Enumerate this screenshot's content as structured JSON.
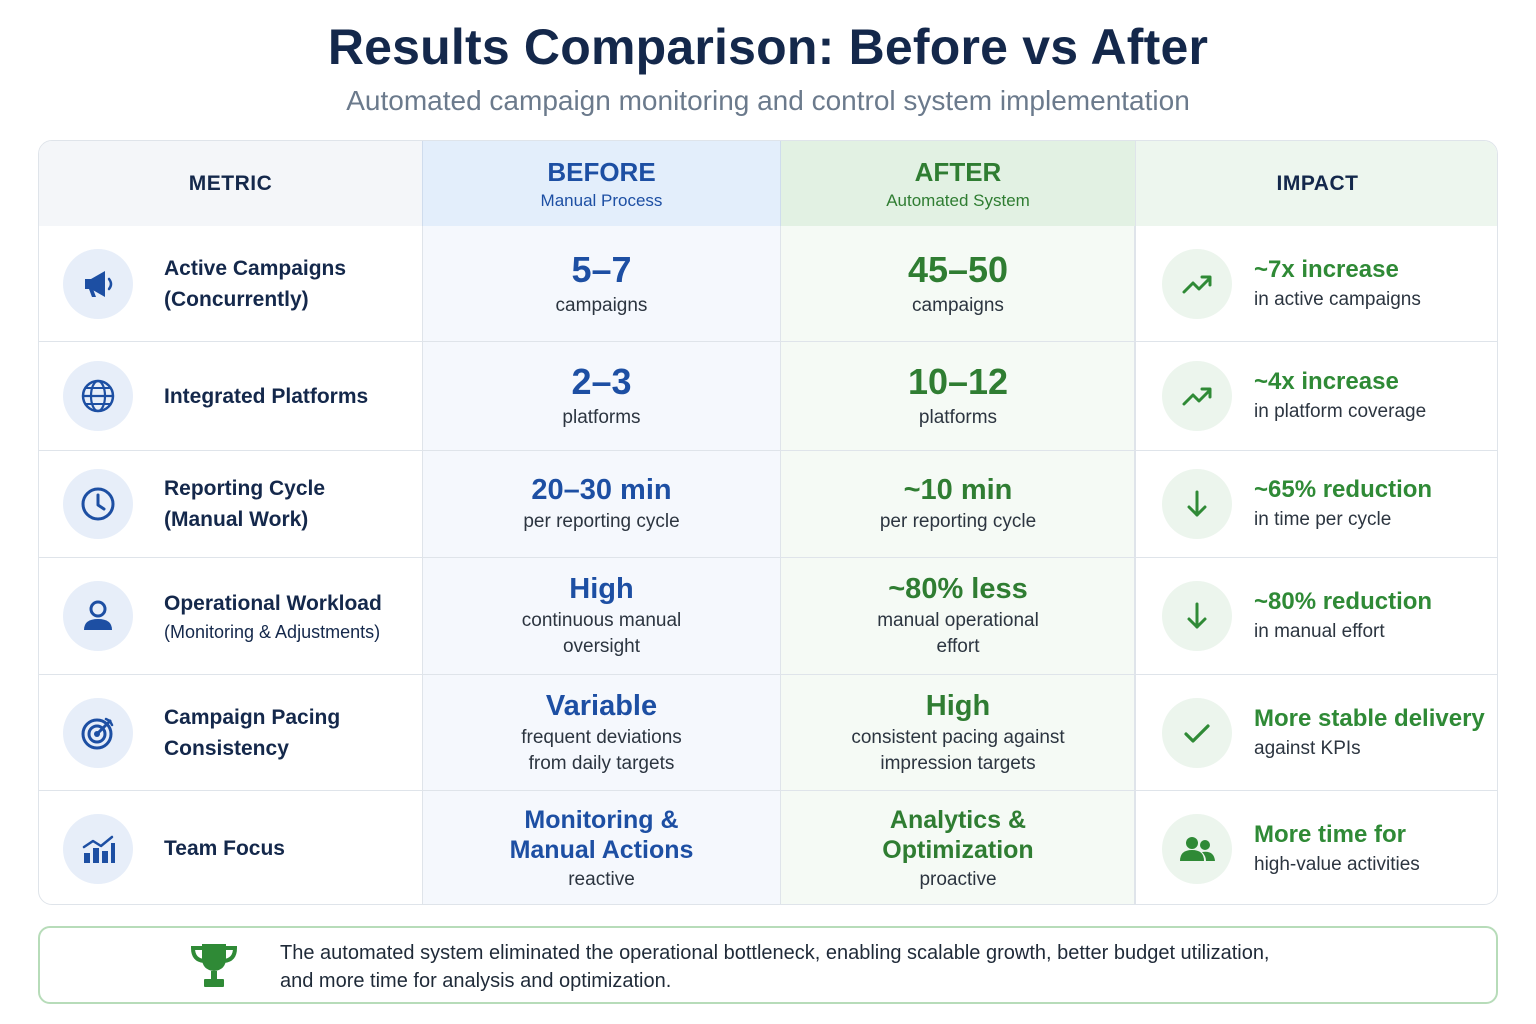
{
  "title": "Results Comparison: Before vs After",
  "subtitle": "Automated campaign monitoring and control system implementation",
  "header": {
    "metric": "METRIC",
    "before_title": "BEFORE",
    "before_sub": "Manual Process",
    "after_title": "AFTER",
    "after_sub": "Automated System",
    "impact": "IMPACT"
  },
  "rows": [
    {
      "metric_line1": "Active Campaigns",
      "metric_line2": "(Concurrently)",
      "icon": "megaphone-icon",
      "before_value": "5–7",
      "before_sub": "campaigns",
      "after_value": "45–50",
      "after_sub": "campaigns",
      "impact_icon": "trend-up-icon",
      "impact_head": "~7x increase",
      "impact_sub": "in active campaigns"
    },
    {
      "metric_line1": "Integrated Platforms",
      "icon": "globe-icon",
      "before_value": "2–3",
      "before_sub": "platforms",
      "after_value": "10–12",
      "after_sub": "platforms",
      "impact_icon": "trend-up-icon",
      "impact_head": "~4x increase",
      "impact_sub": "in platform coverage"
    },
    {
      "metric_line1": "Reporting Cycle",
      "metric_line2": "(Manual Work)",
      "icon": "clock-icon",
      "before_value": "20–30 min",
      "before_sub": "per reporting cycle",
      "after_value": "~10 min",
      "after_sub": "per reporting cycle",
      "impact_icon": "arrow-down-icon",
      "impact_head": "~65% reduction",
      "impact_sub": "in time per cycle"
    },
    {
      "metric_line1": "Operational Workload",
      "metric_sub": "(Monitoring & Adjustments)",
      "icon": "user-icon",
      "before_value": "High",
      "before_sub1": "continuous manual",
      "before_sub2": "oversight",
      "after_value": "~80% less",
      "after_sub1": "manual operational",
      "after_sub2": "effort",
      "impact_icon": "arrow-down-icon",
      "impact_head": "~80% reduction",
      "impact_sub": "in manual effort"
    },
    {
      "metric_line1": "Campaign Pacing",
      "metric_line2": "Consistency",
      "icon": "target-icon",
      "before_value": "Variable",
      "before_sub1": "frequent deviations",
      "before_sub2": "from daily targets",
      "after_value": "High",
      "after_sub1": "consistent pacing against",
      "after_sub2": "impression targets",
      "impact_icon": "checkmark-icon",
      "impact_head": "More stable delivery",
      "impact_sub": "against KPIs"
    },
    {
      "metric_line1": "Team Focus",
      "icon": "analytics-chart-icon",
      "before_value1": "Monitoring &",
      "before_value2": "Manual Actions",
      "before_sub": "reactive",
      "after_value1": "Analytics &",
      "after_value2": "Optimization",
      "after_sub": "proactive",
      "impact_icon": "team-icon",
      "impact_head": "More time for",
      "impact_sub": "high-value activities"
    }
  ],
  "footer": {
    "icon": "trophy-icon",
    "text_line1": "The automated system eliminated the operational bottleneck, enabling scalable growth, better budget utilization,",
    "text_line2": "and more time for analysis and optimization."
  },
  "colors": {
    "before_accent": "#1d4fa3",
    "after_accent": "#2f7d32",
    "impact_accent": "#2f8a36",
    "title": "#14284b"
  }
}
